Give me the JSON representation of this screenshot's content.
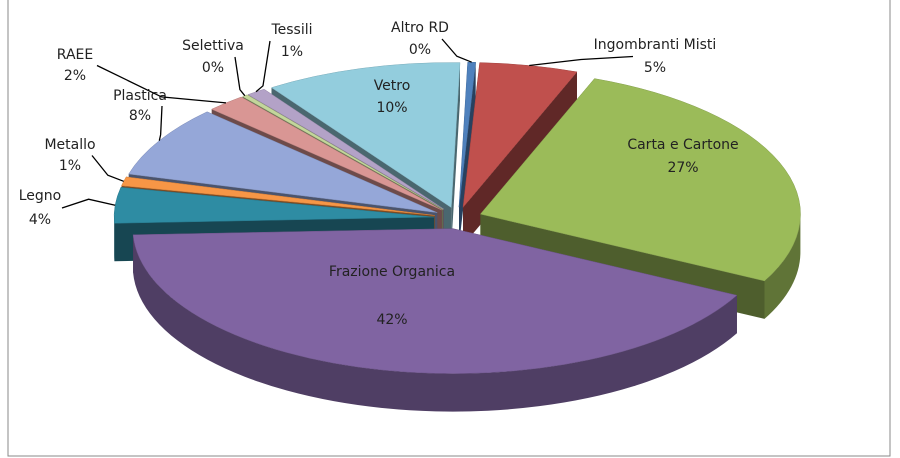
{
  "chart_data": {
    "type": "pie3d",
    "categories": [
      "Ingombranti Misti",
      "Carta e Cartone",
      "Frazione Organica",
      "Legno",
      "Metallo",
      "Plastica",
      "RAEE",
      "Selettiva",
      "Tessili",
      "Vetro",
      "Altro RD"
    ],
    "values": [
      5,
      27,
      42,
      4,
      1,
      8,
      2,
      0.3,
      1,
      10,
      0.4
    ],
    "value_labels": [
      "5%",
      "27%",
      "42%",
      "4%",
      "1%",
      "8%",
      "2%",
      "0%",
      "1%",
      "10%",
      "0%"
    ],
    "colors": [
      "#c0504d",
      "#9bbb59",
      "#8064a2",
      "#2e8ca3",
      "#f79646",
      "#95a7d8",
      "#d99694",
      "#c3d69b",
      "#b3a2c7",
      "#93cddd",
      "#4f81bd"
    ]
  }
}
